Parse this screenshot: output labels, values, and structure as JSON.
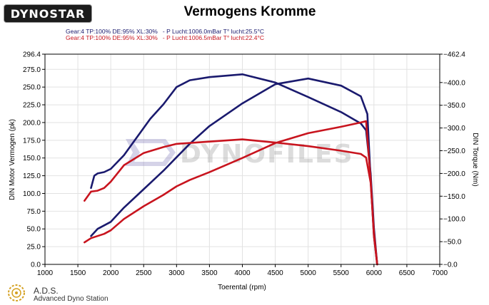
{
  "header": {
    "logo_text": "DYNOSTAR",
    "title": "Vermogens Kromme",
    "legend": [
      {
        "text": "Gear:4 TP:100% DE:95% XL:30%   - P Lucht:1006.0mBar T° lucht:25.5°C",
        "color": "#1a1a6e"
      },
      {
        "text": "Gear:4 TP:100% DE:95% XL:30%   - P Lucht:1006.5mBar T° lucht:22.4°C",
        "color": "#c8141e"
      }
    ]
  },
  "footer": {
    "company_short": "A.D.S.",
    "company_full": "Advanced Dyno Station"
  },
  "watermark": "DYNOFILES",
  "chart_data": {
    "type": "line",
    "title": "Vermogens Kromme",
    "xlabel": "Toerental (rpm)",
    "ylabel_left": "DIN Motor Vermogen (pk)",
    "ylabel_right": "DIN Torque (Nm)",
    "xlim": [
      1000,
      7000
    ],
    "x_ticks": [
      "1000",
      "1500",
      "2000",
      "2500",
      "3000",
      "3500",
      "4000",
      "4500",
      "5000",
      "5500",
      "6000",
      "6500",
      "7000"
    ],
    "ylim_left": [
      0,
      296.4
    ],
    "y_ticks_left": [
      "0.0",
      "25.0",
      "50.0",
      "75.0",
      "100.0",
      "125.0",
      "150.0",
      "175.0",
      "200.0",
      "225.0",
      "250.0",
      "275.0",
      "296.4"
    ],
    "ylim_right": [
      0,
      462.4
    ],
    "y_ticks_right": [
      "0.0",
      "50.0",
      "100.0",
      "150.0",
      "200.0",
      "250.0",
      "300.0",
      "350.0",
      "400.0",
      "462.4"
    ],
    "grid": true,
    "series": [
      {
        "axis": "left",
        "color": "#1a1a6e",
        "x": [
          1700,
          1800,
          1900,
          2000,
          2200,
          2500,
          2800,
          3000,
          3200,
          3500,
          4000,
          4500,
          5000,
          5500,
          5800,
          5900,
          5950,
          6000,
          6050
        ],
        "y": [
          40,
          50,
          55,
          60,
          80,
          106,
          132,
          151,
          170,
          195,
          227,
          254,
          262,
          252,
          237,
          212,
          120,
          40,
          0
        ]
      },
      {
        "axis": "right",
        "color": "#1a1a6e",
        "x": [
          1700,
          1750,
          1800,
          1900,
          2000,
          2200,
          2400,
          2600,
          2800,
          3000,
          3200,
          3500,
          4000,
          4500,
          5000,
          5500,
          5800,
          5880,
          5950,
          6000,
          6050
        ],
        "y": [
          168,
          195,
          200,
          203,
          210,
          240,
          280,
          320,
          352,
          390,
          405,
          412,
          418,
          400,
          368,
          335,
          310,
          295,
          200,
          80,
          0
        ]
      },
      {
        "axis": "left",
        "color": "#c8141e",
        "x": [
          1600,
          1700,
          1800,
          1900,
          2000,
          2200,
          2500,
          2800,
          3000,
          3200,
          3500,
          4000,
          4500,
          5000,
          5500,
          5800,
          5880,
          5950,
          6000,
          6050
        ],
        "y": [
          31,
          37,
          40,
          43,
          48,
          64,
          82,
          98,
          110,
          119,
          130,
          150,
          171,
          185,
          194,
          200,
          202,
          120,
          40,
          0
        ]
      },
      {
        "axis": "right",
        "color": "#c8141e",
        "x": [
          1600,
          1700,
          1800,
          1900,
          2000,
          2200,
          2500,
          2800,
          3000,
          3500,
          4000,
          4500,
          5000,
          5500,
          5800,
          5880,
          5950,
          6000,
          6050
        ],
        "y": [
          140,
          160,
          162,
          168,
          182,
          218,
          245,
          258,
          265,
          270,
          275,
          268,
          260,
          250,
          243,
          235,
          180,
          70,
          0
        ]
      }
    ]
  }
}
